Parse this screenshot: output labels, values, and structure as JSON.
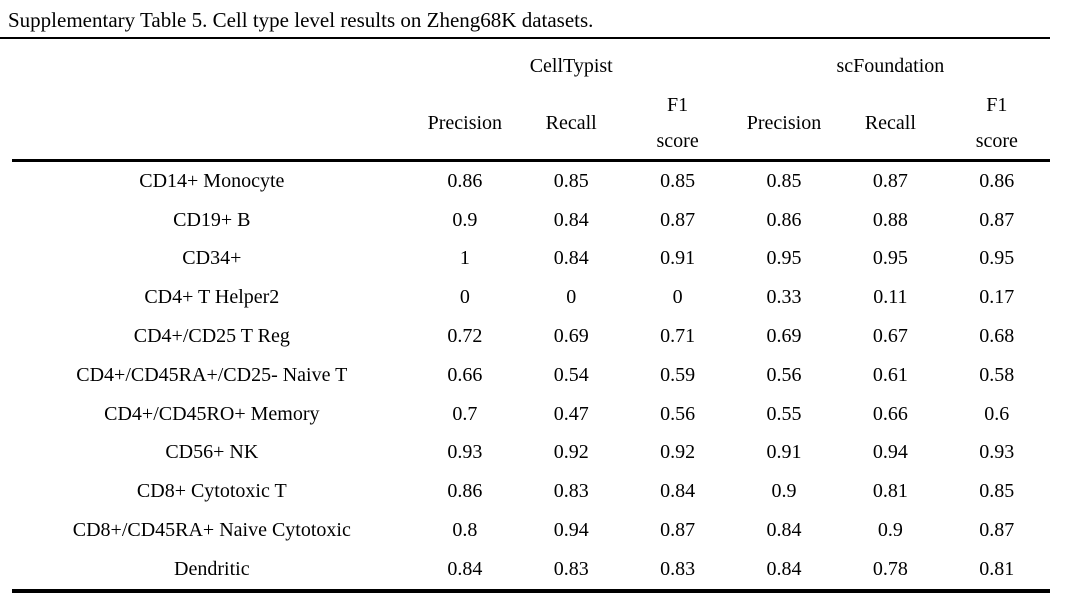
{
  "title": "Supplementary Table 5. Cell type level results on Zheng68K datasets.",
  "colors": {
    "text": "#000000",
    "background": "#ffffff",
    "rule": "#000000"
  },
  "table": {
    "group_headers": [
      {
        "label": "CellTypist"
      },
      {
        "label": "scFoundation"
      }
    ],
    "sub_headers": [
      "Precision",
      "Recall",
      "F1\nscore",
      "Precision",
      "Recall",
      "F1\nscore"
    ],
    "rows": [
      {
        "cell_type": "CD14+ Monocyte",
        "values": [
          "0.86",
          "0.85",
          "0.85",
          "0.85",
          "0.87",
          "0.86"
        ]
      },
      {
        "cell_type": "CD19+ B",
        "values": [
          "0.9",
          "0.84",
          "0.87",
          "0.86",
          "0.88",
          "0.87"
        ]
      },
      {
        "cell_type": "CD34+",
        "values": [
          "1",
          "0.84",
          "0.91",
          "0.95",
          "0.95",
          "0.95"
        ]
      },
      {
        "cell_type": "CD4+ T Helper2",
        "values": [
          "0",
          "0",
          "0",
          "0.33",
          "0.11",
          "0.17"
        ]
      },
      {
        "cell_type": "CD4+/CD25 T Reg",
        "values": [
          "0.72",
          "0.69",
          "0.71",
          "0.69",
          "0.67",
          "0.68"
        ]
      },
      {
        "cell_type": "CD4+/CD45RA+/CD25- Naive T",
        "values": [
          "0.66",
          "0.54",
          "0.59",
          "0.56",
          "0.61",
          "0.58"
        ]
      },
      {
        "cell_type": "CD4+/CD45RO+ Memory",
        "values": [
          "0.7",
          "0.47",
          "0.56",
          "0.55",
          "0.66",
          "0.6"
        ]
      },
      {
        "cell_type": "CD56+ NK",
        "values": [
          "0.93",
          "0.92",
          "0.92",
          "0.91",
          "0.94",
          "0.93"
        ]
      },
      {
        "cell_type": "CD8+ Cytotoxic T",
        "values": [
          "0.86",
          "0.83",
          "0.84",
          "0.9",
          "0.81",
          "0.85"
        ]
      },
      {
        "cell_type": "CD8+/CD45RA+ Naive Cytotoxic",
        "values": [
          "0.8",
          "0.94",
          "0.87",
          "0.84",
          "0.9",
          "0.87"
        ]
      },
      {
        "cell_type": "Dendritic",
        "values": [
          "0.84",
          "0.83",
          "0.83",
          "0.84",
          "0.78",
          "0.81"
        ]
      }
    ]
  }
}
